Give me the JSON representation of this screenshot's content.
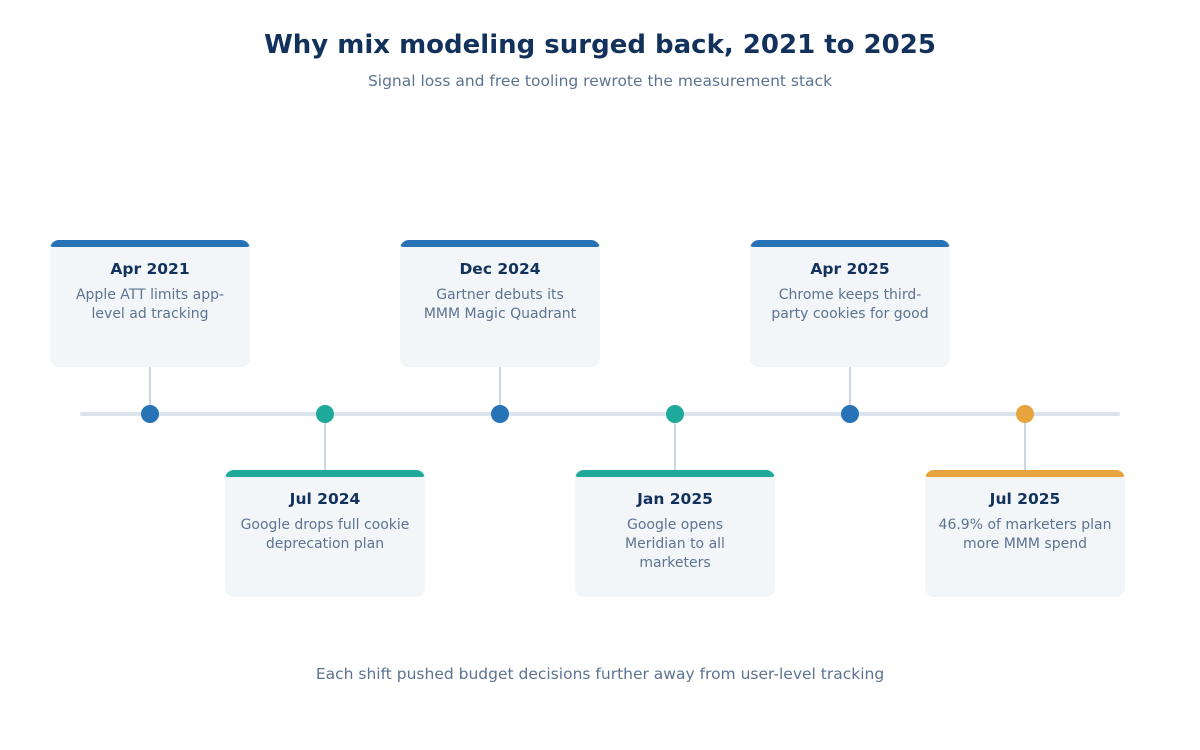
{
  "header": {
    "title": "Why mix modeling surged back, 2021 to 2025",
    "subtitle": "Signal loss and free tooling rewrote the measurement stack"
  },
  "footer": {
    "note": "Each shift pushed budget decisions further away from user-level tracking"
  },
  "colors": {
    "blue": "#2872b6",
    "teal": "#1ea99a",
    "orange": "#e7a33e",
    "axis": "#dbe3ec",
    "card": "#f2f6f9"
  },
  "events": [
    {
      "date": "Apr 2021",
      "description": "Apple ATT limits app-level ad tracking",
      "color": "#2872b6"
    },
    {
      "date": "Jul 2024",
      "description": "Google drops full cookie deprecation plan",
      "color": "#1ea99a"
    },
    {
      "date": "Dec 2024",
      "description": "Gartner debuts its MMM Magic Quadrant",
      "color": "#2872b6"
    },
    {
      "date": "Jan 2025",
      "description": "Google opens Meridian to all marketers",
      "color": "#1ea99a"
    },
    {
      "date": "Apr 2025",
      "description": "Chrome keeps third-party cookies for good",
      "color": "#2872b6"
    },
    {
      "date": "Jul 2025",
      "description": "46.9% of marketers plan more MMM spend",
      "color": "#e7a33e"
    }
  ]
}
